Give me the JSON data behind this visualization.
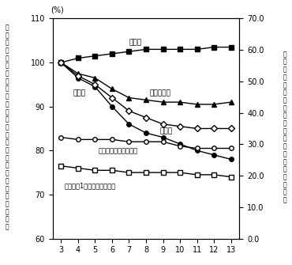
{
  "x": [
    3,
    4,
    5,
    6,
    7,
    8,
    9,
    10,
    11,
    12,
    13
  ],
  "gakko": [
    100,
    101,
    101.5,
    102,
    102.5,
    103,
    103,
    103,
    103,
    103.5,
    103.5
  ],
  "honmu_kyoin": [
    100,
    97.5,
    96.5,
    94,
    92,
    91.5,
    91,
    91,
    90.5,
    90.5,
    91
  ],
  "jido": [
    100,
    96.5,
    94.5,
    90,
    86,
    84,
    83,
    81.5,
    80,
    79,
    78
  ],
  "gakkyu": [
    100,
    97,
    95,
    92,
    89,
    87.5,
    86,
    85.5,
    85,
    85,
    85
  ],
  "ikk_jido": [
    83,
    82.5,
    82.5,
    82.5,
    82,
    82,
    82,
    81,
    80.5,
    80.5,
    80.5
  ],
  "honmu_jido": [
    76.5,
    76,
    75.5,
    75.5,
    75,
    75,
    75,
    75,
    74.5,
    74.5,
    74
  ],
  "ylim_left": [
    60,
    110
  ],
  "ylim_right": [
    0.0,
    70.0
  ],
  "yticks_left": [
    60,
    70,
    80,
    90,
    100,
    110
  ],
  "yticks_right": [
    0.0,
    10.0,
    20.0,
    30.0,
    40.0,
    50.0,
    60.0,
    70.0
  ],
  "label_gakko": "学校数",
  "label_honmu": "本務教員数",
  "label_jido": "児童数",
  "label_gakkyu": "学級数",
  "label_ikk": "１学級当たりの児童数",
  "label_honmu_jido": "本務教員1人当たりの児童数",
  "ylabel_left_chars": [
    "学",
    "校",
    "数",
    "・",
    "学",
    "級",
    "数",
    "・",
    "児",
    "童",
    "数",
    "・",
    "本",
    "務",
    "教",
    "員",
    "数",
    "（",
    "平",
    "成",
    "３",
    "年",
    "＝",
    "１",
    "０",
    "０",
    "）"
  ],
  "ylabel_right_chars": [
    "１",
    "学",
    "級",
    "及",
    "び",
    "本",
    "務",
    "教",
    "員",
    "１",
    "人",
    "当",
    "た",
    "り",
    "児",
    "童",
    "数",
    "（",
    "人",
    "）"
  ]
}
